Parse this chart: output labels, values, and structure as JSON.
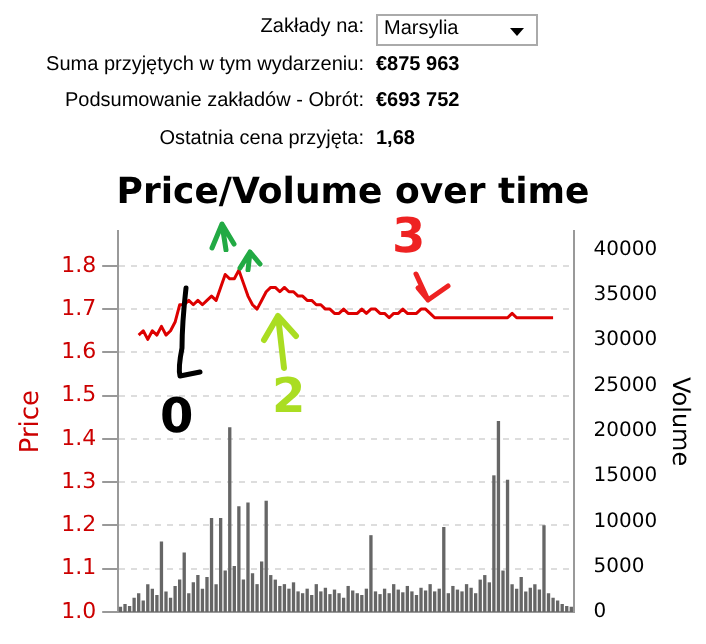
{
  "chart_data": {
    "type": "line",
    "title": "Price/Volume over time",
    "ylabel": "Price",
    "y2label": "Volume",
    "categories": [
      null,
      null,
      null,
      null,
      null,
      null,
      null,
      null,
      null,
      null,
      null,
      null,
      null,
      null,
      null,
      null,
      null,
      null,
      null,
      null,
      null,
      null,
      null,
      null,
      null,
      null,
      null,
      null,
      null,
      null,
      null,
      null,
      null,
      null,
      null,
      null,
      null,
      null,
      null,
      null,
      null,
      null,
      null,
      null,
      null,
      null,
      null,
      null,
      null,
      null,
      null,
      null,
      null,
      null,
      null,
      null,
      null,
      null,
      null,
      null,
      null,
      null,
      null,
      null,
      null,
      null,
      null,
      null,
      null,
      null,
      null,
      null,
      null,
      null,
      null,
      null,
      null,
      null,
      null,
      null,
      null,
      null,
      null,
      null,
      null,
      null,
      null,
      null,
      null,
      null,
      null,
      null,
      null,
      null,
      null,
      null,
      null,
      null,
      null,
      null
    ],
    "series": [
      {
        "color": "#dd0000",
        "values": [
          null,
          null,
          null,
          null,
          1.64,
          1.65,
          1.63,
          1.65,
          1.64,
          1.66,
          1.64,
          1.65,
          1.67,
          1.71,
          1.71,
          1.72,
          1.71,
          1.72,
          1.71,
          1.72,
          1.73,
          1.72,
          1.75,
          1.78,
          1.77,
          1.77,
          1.79,
          1.76,
          1.73,
          1.71,
          1.7,
          1.72,
          1.74,
          1.75,
          1.75,
          1.74,
          1.75,
          1.74,
          1.74,
          1.73,
          1.73,
          1.72,
          1.72,
          1.71,
          1.71,
          1.7,
          1.7,
          1.69,
          1.69,
          1.7,
          1.69,
          1.69,
          1.69,
          1.7,
          1.69,
          1.7,
          1.7,
          1.69,
          1.69,
          1.68,
          1.69,
          1.69,
          1.7,
          1.69,
          1.69,
          1.69,
          1.7,
          1.7,
          1.69,
          1.68,
          1.68,
          1.68,
          1.68,
          1.68,
          1.68,
          1.68,
          1.68,
          1.68,
          1.68,
          1.68,
          1.68,
          1.68,
          1.68,
          1.68,
          1.68,
          1.68,
          1.69,
          1.68,
          1.68,
          1.68,
          1.68,
          1.68,
          1.68,
          1.68,
          1.68,
          1.68,
          null,
          null,
          null,
          null
        ]
      },
      {
        "type": "bar",
        "axis": "y2",
        "color": "#666666",
        "values": [
          500,
          800,
          600,
          1500,
          2000,
          1200,
          3000,
          2500,
          1800,
          7700,
          2200,
          1500,
          2800,
          3500,
          6500,
          2000,
          3200,
          4000,
          2500,
          3800,
          10300,
          3000,
          10300,
          4500,
          20300,
          5000,
          11600,
          3500,
          12000,
          4200,
          3000,
          5500,
          12200,
          4000,
          3500,
          2800,
          3000,
          2500,
          3200,
          2200,
          2000,
          2500,
          1800,
          3000,
          2200,
          2600,
          1900,
          2400,
          2000,
          1500,
          2800,
          2300,
          2000,
          1800,
          2500,
          8400,
          2200,
          1900,
          2500,
          2000,
          3000,
          2400,
          2100,
          2800,
          2200,
          1800,
          2600,
          2300,
          3000,
          2200,
          2500,
          9300,
          2000,
          2800,
          2400,
          2200,
          3000,
          2600,
          2000,
          3500,
          4000,
          3200,
          15000,
          21000,
          4500,
          14500,
          3000,
          2500,
          3800,
          2200,
          2600,
          3000,
          2400,
          9500,
          2000,
          1500,
          1200,
          800,
          600,
          500
        ]
      }
    ],
    "ylim": [
      1.0,
      1.88
    ],
    "yticks": [
      {
        "value": 1.0,
        "label": "1.0"
      },
      1.1,
      1.2,
      1.3,
      1.4,
      1.5,
      1.6,
      1.7,
      1.8
    ],
    "y2lim": [
      0,
      42000
    ],
    "y2ticks": [
      0,
      5000,
      10000,
      15000,
      20000,
      25000,
      30000,
      35000,
      40000
    ],
    "grid": "y",
    "legend": false,
    "marker": "none",
    "line_style": "solid",
    "annotations": [
      "Zakłady na:",
      "Marsylia",
      "Suma przyjętych w tym wydarzeniu:",
      "€875 963",
      "Podsumowanie zakładów - Obrót:",
      "€693 752",
      "Ostatnia cena przyjęta:",
      "1,68",
      "0",
      "2",
      "3"
    ]
  }
}
